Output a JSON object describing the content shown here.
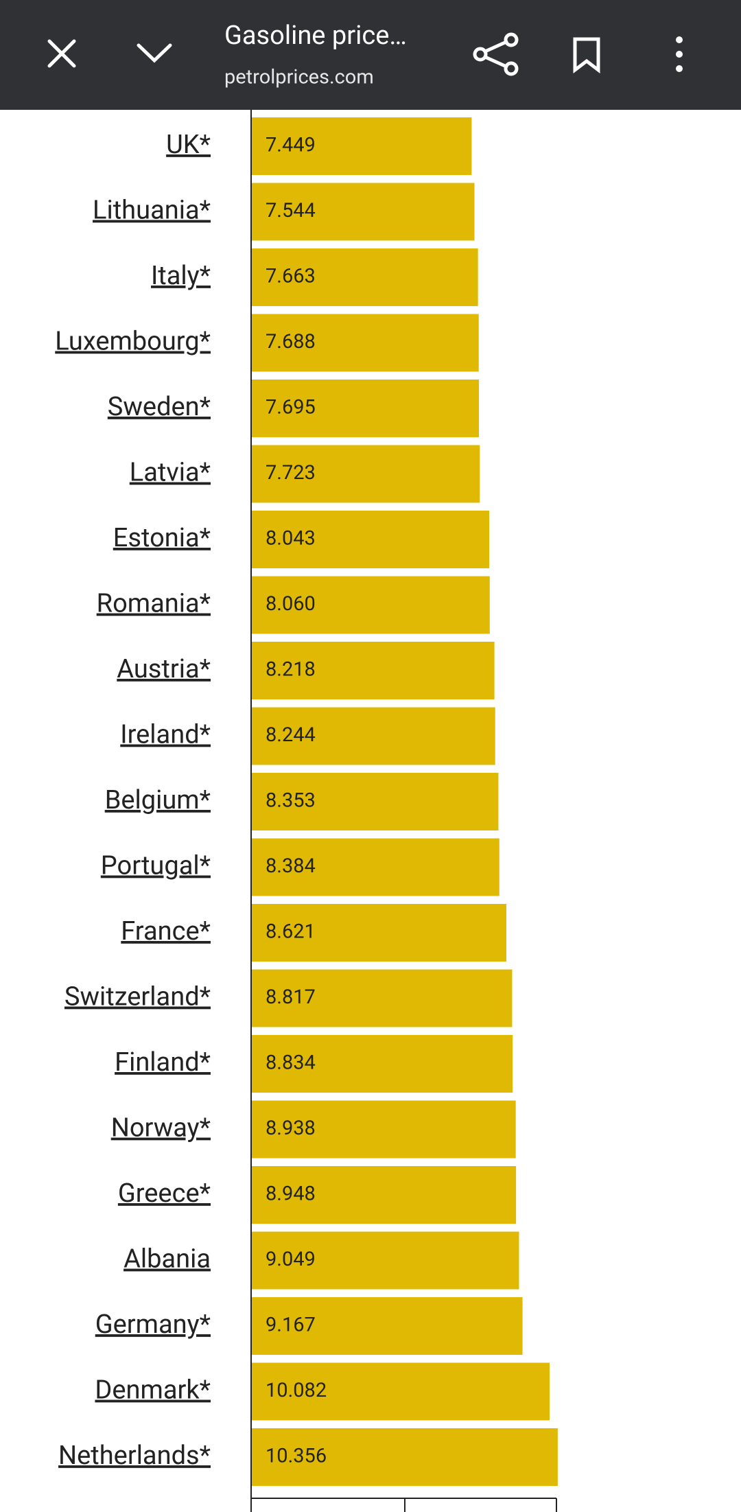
{
  "header": {
    "title": "Gasoline price…",
    "url": "petrolprices.com"
  },
  "chart_data": {
    "type": "bar",
    "orientation": "horizontal",
    "categories": [
      "UK*",
      "Lithuania*",
      "Italy*",
      "Luxembourg*",
      "Sweden*",
      "Latvia*",
      "Estonia*",
      "Romania*",
      "Austria*",
      "Ireland*",
      "Belgium*",
      "Portugal*",
      "France*",
      "Switzerland*",
      "Finland*",
      "Norway*",
      "Greece*",
      "Albania ",
      "Germany*",
      "Denmark*",
      "Netherlands*"
    ],
    "values": [
      7.449,
      7.544,
      7.663,
      7.688,
      7.695,
      7.723,
      8.043,
      8.06,
      8.218,
      8.244,
      8.353,
      8.384,
      8.621,
      8.817,
      8.834,
      8.938,
      8.948,
      9.049,
      9.167,
      10.082,
      10.356
    ],
    "value_labels": [
      "7.449",
      "7.544",
      "7.663",
      "7.688",
      "7.695",
      "7.723",
      "8.043",
      "8.060",
      "8.218",
      "8.244",
      "8.353",
      "8.384",
      "8.621",
      "8.817",
      "8.834",
      "8.938",
      "8.948",
      "9.049",
      "9.167",
      "10.082",
      "10.356"
    ],
    "color": "#e0b905",
    "xlim": [
      0,
      16.5
    ]
  }
}
